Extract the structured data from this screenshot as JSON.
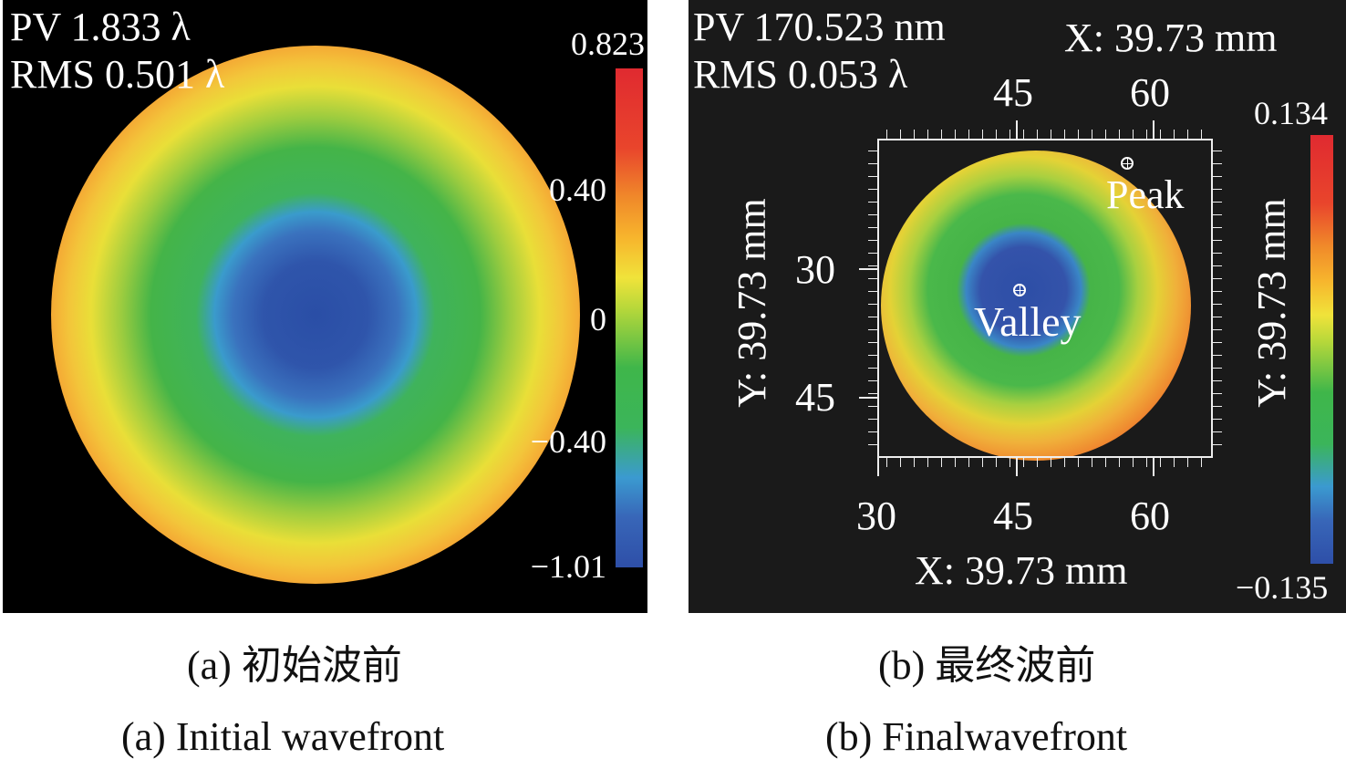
{
  "chart_data": [
    {
      "type": "heatmap",
      "title": "",
      "stats": {
        "pv": "PV 1.833 λ",
        "rms": "RMS 0.501 λ"
      },
      "colorbar": {
        "max": 0.823,
        "min": -1.01,
        "tick_labels": [
          "0.823",
          "0.40",
          "0",
          "−0.40",
          "−1.01"
        ],
        "colormap": [
          "#2e4fa8",
          "#3bb55a",
          "#f0e33a",
          "#f08a2a",
          "#e02a30"
        ]
      },
      "description_caption_zh": "(a) 初始波前",
      "caption_en": "(a) Initial wavefront"
    },
    {
      "type": "heatmap",
      "stats": {
        "pv": "PV 170.523 nm",
        "rms": "RMS 0.053 λ"
      },
      "xlabel": "X: 39.73 mm",
      "ylabel": "Y: 39.73 mm",
      "x_ticks": [
        "30",
        "45",
        "60"
      ],
      "x_top_ticks": [
        "45",
        "60"
      ],
      "y_ticks": [
        "30",
        "45"
      ],
      "annotations": [
        "Peak",
        "Valley"
      ],
      "colorbar": {
        "max": 0.134,
        "min": -0.135,
        "tick_labels": [
          "0.134",
          "−0.135"
        ],
        "label": "Y: 39.73 mm"
      },
      "caption_zh": "(b) 最终波前",
      "caption_en": "(b) Finalwavefront"
    }
  ]
}
